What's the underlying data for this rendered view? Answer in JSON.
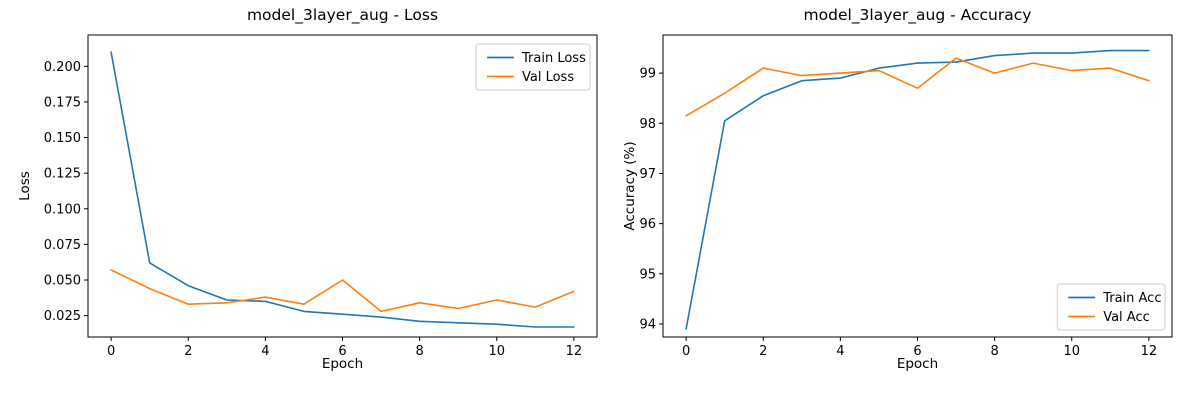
{
  "figure_kind": "training-curves",
  "chart_data": [
    {
      "type": "line",
      "title": "model_3layer_aug - Loss",
      "xlabel": "Epoch",
      "ylabel": "Loss",
      "x": [
        0,
        1,
        2,
        3,
        4,
        5,
        6,
        7,
        8,
        9,
        10,
        11,
        12
      ],
      "series": [
        {
          "name": "Train Loss",
          "color": "#1f77b4",
          "values": [
            0.21,
            0.062,
            0.046,
            0.036,
            0.035,
            0.028,
            0.026,
            0.024,
            0.021,
            0.02,
            0.019,
            0.017,
            0.017
          ]
        },
        {
          "name": "Val Loss",
          "color": "#ff7f0e",
          "values": [
            0.057,
            0.044,
            0.033,
            0.034,
            0.038,
            0.033,
            0.05,
            0.028,
            0.034,
            0.03,
            0.036,
            0.031,
            0.042
          ]
        }
      ],
      "xlim": [
        -0.6,
        12.6
      ],
      "ylim": [
        0.01,
        0.222
      ],
      "xticks": [
        0,
        2,
        4,
        6,
        8,
        10,
        12
      ],
      "yticks": [
        0.025,
        0.05,
        0.075,
        0.1,
        0.125,
        0.15,
        0.175,
        0.2
      ],
      "ytick_labels": [
        "0.025",
        "0.050",
        "0.075",
        "0.100",
        "0.125",
        "0.150",
        "0.175",
        "0.200"
      ],
      "grid": false,
      "legend": {
        "position": "upper right",
        "entries": [
          "Train Loss",
          "Val Loss"
        ]
      }
    },
    {
      "type": "line",
      "title": "model_3layer_aug - Accuracy",
      "xlabel": "Epoch",
      "ylabel": "Accuracy (%)",
      "x": [
        0,
        1,
        2,
        3,
        4,
        5,
        6,
        7,
        8,
        9,
        10,
        11,
        12
      ],
      "series": [
        {
          "name": "Train Acc",
          "color": "#1f77b4",
          "values": [
            93.9,
            98.05,
            98.55,
            98.85,
            98.9,
            99.1,
            99.2,
            99.22,
            99.35,
            99.4,
            99.4,
            99.45,
            99.45
          ]
        },
        {
          "name": "Val Acc",
          "color": "#ff7f0e",
          "values": [
            98.15,
            98.6,
            99.1,
            98.95,
            99.0,
            99.05,
            98.7,
            99.3,
            99.0,
            99.2,
            99.05,
            99.1,
            98.85
          ]
        }
      ],
      "xlim": [
        -0.6,
        12.6
      ],
      "ylim": [
        93.74,
        99.76
      ],
      "xticks": [
        0,
        2,
        4,
        6,
        8,
        10,
        12
      ],
      "yticks": [
        94,
        95,
        96,
        97,
        98,
        99
      ],
      "ytick_labels": [
        "94",
        "95",
        "96",
        "97",
        "98",
        "99"
      ],
      "grid": false,
      "legend": {
        "position": "lower right",
        "entries": [
          "Train Acc",
          "Val Acc"
        ]
      }
    }
  ],
  "colors": {
    "train": "#1f77b4",
    "val": "#ff7f0e",
    "spine": "#000000",
    "legend_border": "#cccccc"
  }
}
